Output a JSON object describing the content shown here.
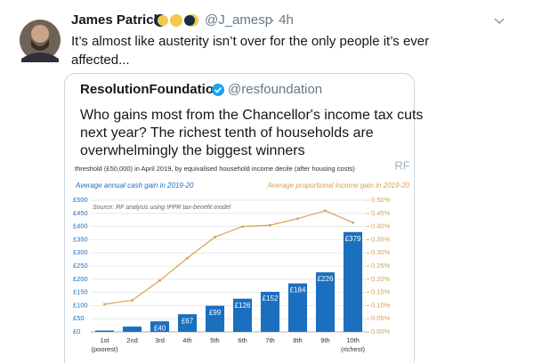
{
  "tweet": {
    "author": "James Patrick",
    "handle": "@J_amesp",
    "time": "· 4h",
    "text": [
      "It’s almost like austerity isn’t over for the only people it’s ever",
      "affected..."
    ]
  },
  "quote": {
    "author": "ResolutionFoundation",
    "handle": "@resfoundation",
    "text": [
      "Who gains most from the Chancellor's income tax cuts",
      "next year? The richest tenth of households are",
      "overwhelmingly the biggest winners"
    ]
  },
  "chart_data": {
    "type": "bar",
    "subtitle": "threshold (£50,000) in April 2019, by equivalised household income decile (after housing costs)",
    "logo": "RF",
    "y_label": "Average annual cash gain in 2019-20",
    "y2_label": "Average proportional income gain in 2019-20",
    "source": "Source: RF analysis using IPPR tax-benefit model",
    "categories": [
      "1st",
      "2nd",
      "3rd",
      "4th",
      "5th",
      "6th",
      "7th",
      "8th",
      "9th",
      "10th"
    ],
    "category_sublabels": [
      "(poorest)",
      null,
      null,
      null,
      null,
      null,
      null,
      null,
      null,
      "(richest)"
    ],
    "series": [
      {
        "type": "bar",
        "color": "#1a6fbf",
        "values": [
          5,
          20,
          40,
          67,
          99,
          126,
          152,
          184,
          226,
          379
        ],
        "value_labels": [
          null,
          null,
          "£40",
          "£67",
          "£99",
          "£126",
          "£152",
          "£184",
          "£226",
          "£379"
        ]
      },
      {
        "type": "line",
        "axis": "y2",
        "color": "#d9a04e",
        "values": [
          0.105,
          0.12,
          0.195,
          0.28,
          0.36,
          0.4,
          0.405,
          0.43,
          0.46,
          0.415
        ]
      }
    ],
    "ylim": [
      0,
      500
    ],
    "yticks": [
      {
        "value": 0,
        "label": "£0"
      },
      {
        "value": 50,
        "label": "£50"
      },
      {
        "value": 100,
        "label": "£100"
      },
      {
        "value": 150,
        "label": "£150"
      },
      {
        "value": 200,
        "label": "£200"
      },
      {
        "value": 250,
        "label": "£250"
      },
      {
        "value": 300,
        "label": "£300"
      },
      {
        "value": 350,
        "label": "£350"
      },
      {
        "value": 400,
        "label": "£400"
      },
      {
        "value": 450,
        "label": "£450"
      },
      {
        "value": 500,
        "label": "£500"
      }
    ],
    "y2lim": [
      0,
      0.5
    ],
    "y2ticks": [
      {
        "value": 0,
        "label": "0.00%"
      },
      {
        "value": 0.05,
        "label": "0.05%"
      },
      {
        "value": 0.1,
        "label": "0.10%"
      },
      {
        "value": 0.15,
        "label": "0.15%"
      },
      {
        "value": 0.2,
        "label": "0.20%"
      },
      {
        "value": 0.25,
        "label": "0.25%"
      },
      {
        "value": 0.3,
        "label": "0.30%"
      },
      {
        "value": 0.35,
        "label": "0.35%"
      },
      {
        "value": 0.4,
        "label": "0.40%"
      },
      {
        "value": 0.45,
        "label": "0.45%"
      },
      {
        "value": 0.5,
        "label": "0.50%"
      }
    ],
    "grid": true
  }
}
